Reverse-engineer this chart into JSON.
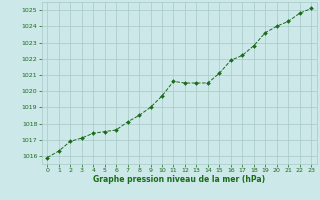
{
  "x": [
    0,
    1,
    2,
    3,
    4,
    5,
    6,
    7,
    8,
    9,
    10,
    11,
    12,
    13,
    14,
    15,
    16,
    17,
    18,
    19,
    20,
    21,
    22,
    23
  ],
  "y": [
    1015.9,
    1016.3,
    1016.9,
    1017.1,
    1017.4,
    1017.5,
    1017.6,
    1018.1,
    1018.5,
    1019.0,
    1019.7,
    1020.6,
    1020.5,
    1020.5,
    1020.5,
    1021.1,
    1021.9,
    1022.2,
    1022.8,
    1023.6,
    1024.0,
    1024.3,
    1024.8,
    1025.1
  ],
  "line_color": "#1a6b1a",
  "marker": "D",
  "marker_size": 2.0,
  "bg_color": "#cce8e8",
  "grid_color": "#a8c8c8",
  "xlabel": "Graphe pression niveau de la mer (hPa)",
  "xlabel_color": "#1a6b1a",
  "tick_color": "#1a6b1a",
  "ylim": [
    1015.5,
    1025.5
  ],
  "yticks": [
    1016,
    1017,
    1018,
    1019,
    1020,
    1021,
    1022,
    1023,
    1024,
    1025
  ],
  "xlim": [
    -0.5,
    23.5
  ],
  "xticks": [
    0,
    1,
    2,
    3,
    4,
    5,
    6,
    7,
    8,
    9,
    10,
    11,
    12,
    13,
    14,
    15,
    16,
    17,
    18,
    19,
    20,
    21,
    22,
    23
  ]
}
